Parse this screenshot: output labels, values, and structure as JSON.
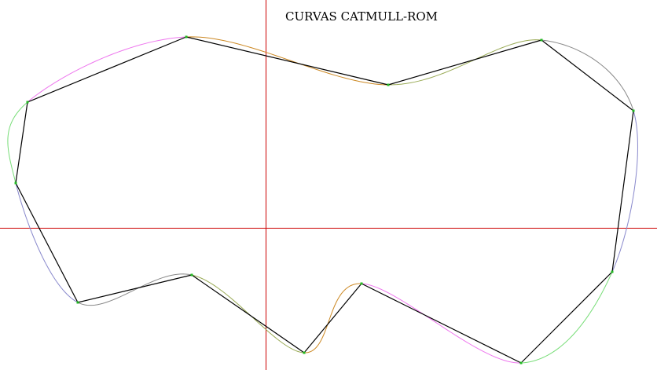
{
  "title": "CURVAS CATMULL-ROM",
  "colors": {
    "background": "#ffffff",
    "axes": "#cc0000",
    "polygon": "#000000",
    "control_point": "#22bb22",
    "segment_colors": [
      "#ee77ee",
      "#cc8822",
      "#99aa55",
      "#888888",
      "#8888cc",
      "#77dd77"
    ]
  },
  "axes": {
    "x_origin": 0,
    "y_origin": 0
  },
  "chart_data": {
    "type": "catmull-rom-closed-curve",
    "title": "CURVAS CATMULL-ROM",
    "control_points": [
      {
        "x": -303,
        "y": 160
      },
      {
        "x": -101,
        "y": 243
      },
      {
        "x": 156,
        "y": 182
      },
      {
        "x": 351,
        "y": 239
      },
      {
        "x": 468,
        "y": 149
      },
      {
        "x": 441,
        "y": -56
      },
      {
        "x": 325,
        "y": -172
      },
      {
        "x": 122,
        "y": -71
      },
      {
        "x": 49,
        "y": -159
      },
      {
        "x": -94,
        "y": -60
      },
      {
        "x": -239,
        "y": -95
      },
      {
        "x": -318,
        "y": 57
      }
    ]
  }
}
